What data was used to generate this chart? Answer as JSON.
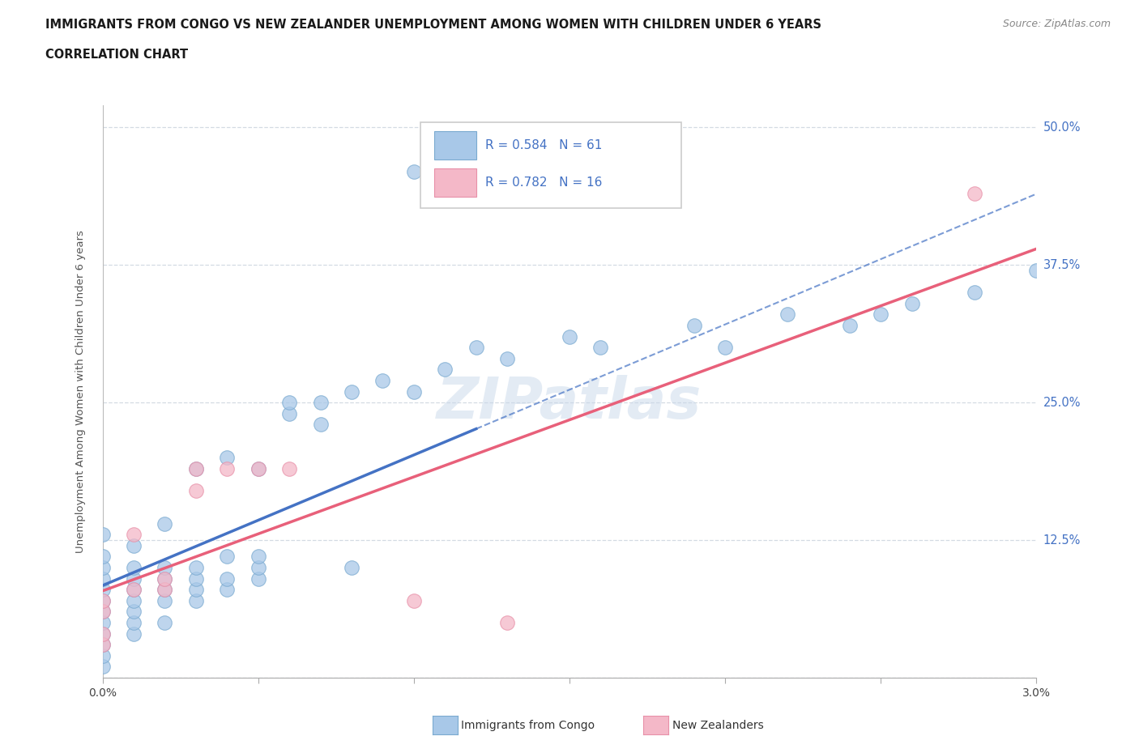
{
  "title_line1": "IMMIGRANTS FROM CONGO VS NEW ZEALANDER UNEMPLOYMENT AMONG WOMEN WITH CHILDREN UNDER 6 YEARS",
  "title_line2": "CORRELATION CHART",
  "source": "Source: ZipAtlas.com",
  "ylabel_label": "Unemployment Among Women with Children Under 6 years",
  "x_min": 0.0,
  "x_max": 0.03,
  "y_min": 0.0,
  "y_max": 0.52,
  "x_ticks": [
    0.0,
    0.005,
    0.01,
    0.015,
    0.02,
    0.025,
    0.03
  ],
  "y_ticks": [
    0.0,
    0.125,
    0.25,
    0.375,
    0.5
  ],
  "y_tick_labels": [
    "",
    "12.5%",
    "25.0%",
    "37.5%",
    "50.0%"
  ],
  "congo_color": "#a8c8e8",
  "nz_color": "#f4b8c8",
  "congo_edge_color": "#7aaad0",
  "nz_edge_color": "#e890a8",
  "congo_line_color": "#4472c4",
  "nz_line_color": "#e8607a",
  "congo_scatter_x": [
    0.0,
    0.0,
    0.0,
    0.0,
    0.0,
    0.0,
    0.0,
    0.0,
    0.0,
    0.0,
    0.0,
    0.0,
    0.001,
    0.001,
    0.001,
    0.001,
    0.001,
    0.001,
    0.001,
    0.001,
    0.002,
    0.002,
    0.002,
    0.002,
    0.002,
    0.002,
    0.003,
    0.003,
    0.003,
    0.003,
    0.003,
    0.004,
    0.004,
    0.004,
    0.004,
    0.005,
    0.005,
    0.005,
    0.005,
    0.006,
    0.006,
    0.007,
    0.007,
    0.008,
    0.008,
    0.009,
    0.01,
    0.01,
    0.011,
    0.012,
    0.013,
    0.015,
    0.016,
    0.019,
    0.02,
    0.022,
    0.024,
    0.025,
    0.026,
    0.028,
    0.03
  ],
  "congo_scatter_y": [
    0.01,
    0.02,
    0.03,
    0.04,
    0.05,
    0.06,
    0.07,
    0.08,
    0.09,
    0.1,
    0.11,
    0.13,
    0.04,
    0.05,
    0.06,
    0.07,
    0.08,
    0.09,
    0.1,
    0.12,
    0.05,
    0.07,
    0.08,
    0.09,
    0.1,
    0.14,
    0.07,
    0.08,
    0.09,
    0.1,
    0.19,
    0.08,
    0.09,
    0.11,
    0.2,
    0.09,
    0.1,
    0.11,
    0.19,
    0.24,
    0.25,
    0.23,
    0.25,
    0.1,
    0.26,
    0.27,
    0.26,
    0.46,
    0.28,
    0.3,
    0.29,
    0.31,
    0.3,
    0.32,
    0.3,
    0.33,
    0.32,
    0.33,
    0.34,
    0.35,
    0.37
  ],
  "nz_scatter_x": [
    0.0,
    0.0,
    0.0,
    0.0,
    0.001,
    0.001,
    0.002,
    0.002,
    0.003,
    0.003,
    0.004,
    0.005,
    0.006,
    0.01,
    0.013,
    0.028
  ],
  "nz_scatter_y": [
    0.03,
    0.04,
    0.06,
    0.07,
    0.08,
    0.13,
    0.08,
    0.09,
    0.17,
    0.19,
    0.19,
    0.19,
    0.19,
    0.07,
    0.05,
    0.44
  ],
  "congo_R": 0.584,
  "congo_N": 61,
  "nz_R": 0.782,
  "nz_N": 16,
  "watermark": "ZIPatlas",
  "background_color": "#ffffff",
  "grid_color": "#d0d8e0",
  "congo_line_x_end": 0.012,
  "nz_line_x_end": 0.03
}
